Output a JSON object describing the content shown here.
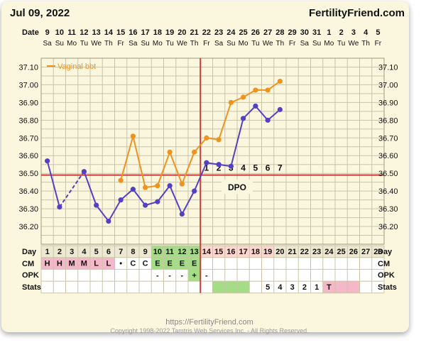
{
  "header": {
    "date": "Jul 09, 2022",
    "site": "FertilityFriend.com"
  },
  "row_labels": {
    "date": "Date",
    "day": "Day",
    "cm": "CM",
    "opk": "OPK",
    "stats": "Stats",
    "dpo": "DPO"
  },
  "dates": [
    "9",
    "10",
    "11",
    "12",
    "13",
    "14",
    "15",
    "16",
    "17",
    "18",
    "19",
    "20",
    "21",
    "22",
    "23",
    "24",
    "25",
    "26",
    "27",
    "28",
    "29",
    "30",
    "31",
    "1",
    "2",
    "3",
    "4",
    "5"
  ],
  "weekdays": [
    "Sa",
    "Su",
    "Mo",
    "Tu",
    "We",
    "Th",
    "Fr",
    "Sa",
    "Su",
    "Mo",
    "Tu",
    "We",
    "Th",
    "Fr",
    "Sa",
    "Su",
    "Mo",
    "Tu",
    "We",
    "Th",
    "Fr",
    "Sa",
    "Su",
    "Mo",
    "Tu",
    "We",
    "Th",
    "Fr"
  ],
  "cycle_days": [
    "1",
    "2",
    "3",
    "4",
    "5",
    "6",
    "7",
    "8",
    "9",
    "10",
    "11",
    "12",
    "13",
    "14",
    "15",
    "16",
    "17",
    "18",
    "19",
    "20",
    "21",
    "22",
    "23",
    "24",
    "25",
    "26",
    "27",
    "28"
  ],
  "cm": [
    "H",
    "H",
    "M",
    "M",
    "L",
    "L",
    "•",
    "C",
    "C",
    "E",
    "E",
    "E",
    "E",
    "",
    "",
    "",
    "",
    "",
    "",
    "",
    "",
    "",
    "",
    "",
    "",
    "",
    "",
    ""
  ],
  "opk": [
    "",
    "",
    "",
    "",
    "",
    "",
    "",
    "",
    "",
    "-",
    "-",
    "-",
    "+",
    "-",
    "",
    "",
    "",
    "",
    "",
    "",
    "",
    "",
    "",
    "",
    "",
    "",
    "",
    ""
  ],
  "stats": [
    "",
    "",
    "",
    "",
    "",
    "",
    "",
    "",
    "",
    "",
    "",
    "",
    "",
    "",
    "",
    "",
    "",
    "",
    "5",
    "4",
    "3",
    "2",
    "1",
    "T",
    "",
    "",
    "",
    ""
  ],
  "dpo_labels": [
    "1",
    "2",
    "3",
    "4",
    "5",
    "6",
    "7"
  ],
  "footer": {
    "url": "https://FertilityFriend.com",
    "copyright": "Copyright 1998-2022 Tamtris Web Services Inc. - All Rights Reserved."
  },
  "colors": {
    "primary_line": "#5540c4",
    "secondary_line": "#f0921e",
    "coverline": "#c83c3c",
    "ovulation_line": "#c83c3c",
    "cm_menstrual_bg": "#f4b8c8",
    "fertile_bg": "#a5dc86",
    "ovulation_day_bg": "#ffd6cf"
  },
  "chart_data": {
    "type": "line",
    "x": [
      "1",
      "2",
      "3",
      "4",
      "5",
      "6",
      "7",
      "8",
      "9",
      "10",
      "11",
      "12",
      "13",
      "14",
      "15",
      "16",
      "17",
      "18",
      "19",
      "20",
      "21",
      "22",
      "23",
      "24",
      "25",
      "26",
      "27",
      "28"
    ],
    "ylim": [
      36.1,
      37.15
    ],
    "yticks": [
      "36.20",
      "36.30",
      "36.40",
      "36.50",
      "36.60",
      "36.70",
      "36.80",
      "36.90",
      "37.00",
      "37.10"
    ],
    "coverline": 36.49,
    "ovulation_day": 13,
    "series": [
      {
        "values": [
          36.57,
          36.31,
          null,
          36.51,
          36.32,
          36.23,
          36.35,
          36.41,
          36.32,
          36.34,
          36.43,
          36.27,
          36.4,
          36.56,
          36.55,
          36.54,
          36.81,
          36.88,
          36.8,
          36.86,
          null,
          null,
          null,
          null,
          null,
          null,
          null,
          null
        ]
      },
      {
        "name": "Vaginal bbt",
        "values": [
          null,
          null,
          null,
          null,
          null,
          null,
          36.46,
          36.71,
          36.42,
          36.43,
          36.62,
          36.44,
          36.62,
          36.7,
          36.69,
          36.9,
          36.93,
          36.97,
          36.97,
          37.02,
          null,
          null,
          null,
          null,
          null,
          null,
          null,
          null
        ]
      }
    ]
  }
}
